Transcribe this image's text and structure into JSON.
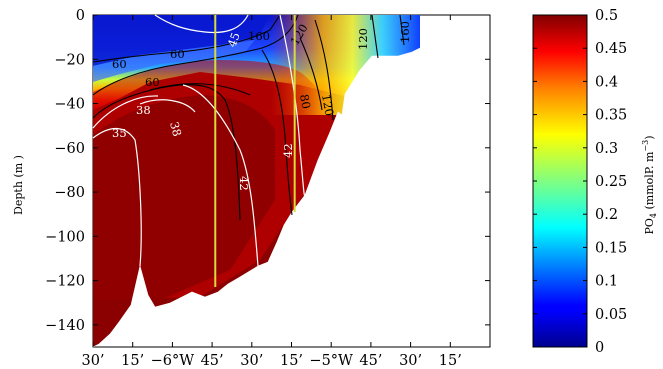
{
  "chart_data": {
    "type": "heatmap",
    "title": "",
    "ylabel": "Depth (m )",
    "ylim": [
      -150,
      0
    ],
    "y_ticks": [
      "0",
      "−20",
      "−40",
      "−60",
      "−80",
      "−100",
      "−120",
      "−140"
    ],
    "y_tick_values": [
      0,
      -20,
      -40,
      -60,
      -80,
      -100,
      -120,
      -140
    ],
    "x_ticks": [
      "30’",
      "15’",
      "−6°W",
      "45’",
      "30’",
      "15’",
      "−5°W",
      "45’",
      "30’",
      "15’"
    ],
    "x_tick_values": [
      -6.5,
      -6.25,
      -6.0,
      -5.75,
      -5.5,
      -5.25,
      -5.0,
      -4.75,
      -4.5,
      -4.25
    ],
    "xlim": [
      -6.5,
      -4.0
    ],
    "colorbar": {
      "label_main": "PO",
      "label_sub": "4",
      "label_rest": " (mmolP. m",
      "label_sup": "−3",
      "label_close": ")",
      "range": [
        0,
        0.5
      ],
      "ticks": [
        "0.5",
        "0.45",
        "0.4",
        "0.35",
        "0.3",
        "0.25",
        "0.2",
        "0.15",
        "0.1",
        "0.05",
        "0"
      ],
      "tick_values": [
        0.5,
        0.45,
        0.4,
        0.35,
        0.3,
        0.25,
        0.2,
        0.15,
        0.1,
        0.05,
        0
      ],
      "colormap": "jet"
    },
    "black_contours": [
      "160",
      "120",
      "60",
      "60",
      "60",
      "80",
      "120",
      "120",
      "160"
    ],
    "white_contours": [
      "45",
      "38",
      "38",
      "35",
      "42",
      "42"
    ],
    "vertical_line_color": "#d8dc3a",
    "vertical_line_x": [
      -5.73,
      -5.23
    ]
  }
}
